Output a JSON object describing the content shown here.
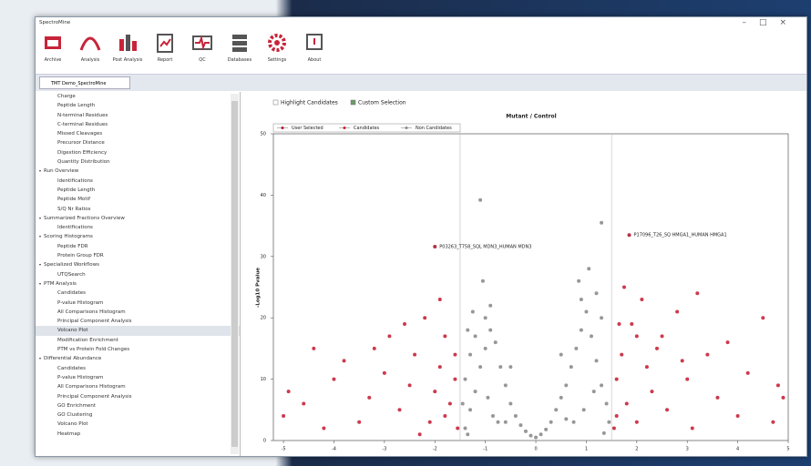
{
  "window": {
    "title": "SpectroMine"
  },
  "toolbar": {
    "items": [
      "Archive",
      "Analysis",
      "Post Analysis",
      "Report",
      "QC",
      "Databases",
      "Settings",
      "About"
    ]
  },
  "tab": {
    "title": "TMT Demo_SpectroMine"
  },
  "tree": [
    {
      "items": [
        "Charge",
        "Peptide Length",
        "N-terminal Residues",
        "C-terminal Residues",
        "Missed Cleavages",
        "Precursor Distance",
        "Digestion Efficiency",
        "Quantity Distribution"
      ]
    },
    {
      "header": "Run Overview",
      "items": [
        "Identifications",
        "Peptide Length",
        "Peptide Motif",
        "S/Q Nr Ratios"
      ]
    },
    {
      "header": "Summarized Fractions Overview",
      "items": [
        "Identifications"
      ]
    },
    {
      "header": "Scoring Histograms",
      "items": [
        "Peptide FDR",
        "Protein Group FDR"
      ]
    },
    {
      "header": "Specialized Workflows",
      "items": [
        "UTQSearch"
      ]
    },
    {
      "header": "PTM Analysis",
      "items": [
        "Candidates",
        "P-value Histogram",
        "All Comparisons Histogram",
        "Principal Component Analysis",
        "Volcano Plot",
        "Modification Enrichment",
        "PTM vs Protein Fold Changes"
      ],
      "selected_item": 4
    },
    {
      "header": "Differential Abundance",
      "items": [
        "Candidates",
        "P-value Histogram",
        "All Comparisons Histogram",
        "Principal Component Analysis",
        "GO Enrichment",
        "GO Clustering",
        "Volcano Plot",
        "Heatmap"
      ]
    }
  ],
  "controls": {
    "highlight_candidates": {
      "label": "Highlight Candidates",
      "checked": false
    },
    "custom_selection": {
      "label": "Custom Selection",
      "checked": true
    }
  },
  "chart_data": {
    "type": "scatter",
    "title": "Mutant / Control",
    "y_label": "-Log10 Pvalue",
    "xlim": [
      -5.2,
      5.0
    ],
    "ylim": [
      0,
      50
    ],
    "xticks": [
      -5,
      -4,
      -3,
      -2,
      -1,
      0,
      1,
      2,
      3,
      4,
      5
    ],
    "yticks": [
      0,
      10,
      20,
      30,
      40,
      50
    ],
    "thresholds": [
      -1.5,
      1.5
    ],
    "series": [
      {
        "name": "User Selected",
        "color": "#b0182e",
        "x": [
          -2.0,
          1.85
        ],
        "values": [
          31.6,
          33.5
        ],
        "point_labels": [
          "P03263_T758_SQL MDN3_HUMAN MDN3",
          "P17096_T26_SQ HMGA1_HUMAN HMGA1"
        ]
      },
      {
        "name": "Candidates",
        "color": "#c8243a",
        "x": [
          -5.0,
          -4.9,
          -4.6,
          -4.4,
          -4.2,
          -4,
          -3.8,
          -3.5,
          -3.3,
          -3,
          -3.2,
          -2.9,
          -2.7,
          -2.5,
          -2.4,
          -2.2,
          -2.1,
          -2,
          -1.9,
          -1.8,
          -1.7,
          -1.6,
          -1.55,
          -2.3,
          -2.6,
          -1.9,
          -1.6,
          -1.8,
          1.55,
          1.6,
          1.7,
          1.8,
          1.9,
          2,
          2.1,
          2.2,
          2.3,
          2.5,
          2.6,
          2.8,
          3,
          3.1,
          3.2,
          3.4,
          3.6,
          3.8,
          4,
          4.2,
          4.5,
          4.7,
          4.8,
          4.9,
          1.65,
          1.75,
          2.4,
          2.9,
          1.6,
          2.0
        ],
        "values": [
          4,
          8,
          6,
          15,
          2,
          10,
          13,
          3,
          7,
          11,
          15,
          17,
          5,
          9,
          14,
          20,
          3,
          8,
          12,
          17,
          6,
          10,
          2,
          1,
          19,
          23,
          14,
          4,
          2,
          10,
          14,
          6,
          19,
          3,
          23,
          12,
          8,
          17,
          5,
          21,
          10,
          2,
          24,
          14,
          7,
          16,
          4,
          11,
          20,
          3,
          9,
          7,
          19,
          25,
          15,
          13,
          4,
          17
        ]
      },
      {
        "name": "Non Candidates",
        "color": "#8c8c8c",
        "x": [
          -1.4,
          -1.3,
          -1.2,
          -1.1,
          -1.0,
          -0.9,
          -1.4,
          -1.3,
          -1.2,
          -1.0,
          -0.8,
          -0.7,
          -0.6,
          -0.5,
          -0.4,
          -0.3,
          -0.2,
          -0.1,
          0,
          0.1,
          0.2,
          0.3,
          0.4,
          0.5,
          0.6,
          0.7,
          0.8,
          0.9,
          1.0,
          1.1,
          1.2,
          1.3,
          1.4,
          1.45,
          -1.45,
          -1.35,
          -1.25,
          -0.95,
          -0.85,
          -0.75,
          0.75,
          0.95,
          1.15,
          1.3,
          1.2,
          0.9,
          -1.1,
          1.3,
          1.05,
          0.85,
          -1.05,
          -0.9,
          -0.5,
          0.5,
          -1.35,
          1.35,
          -0.6,
          0.6
        ],
        "values": [
          2,
          5,
          8,
          12,
          15,
          18,
          10,
          14,
          17,
          20,
          16,
          12,
          9,
          6,
          4,
          2.5,
          1.5,
          0.8,
          0.5,
          1,
          1.8,
          3,
          5,
          7,
          9,
          12,
          15,
          18,
          21,
          17,
          13,
          9,
          6,
          3,
          6,
          18,
          21,
          7,
          4,
          3,
          3,
          5,
          8,
          20,
          24,
          23,
          39.2,
          35.5,
          28,
          26,
          26,
          22,
          12,
          14,
          1,
          1.2,
          3,
          3.5
        ]
      }
    ]
  }
}
